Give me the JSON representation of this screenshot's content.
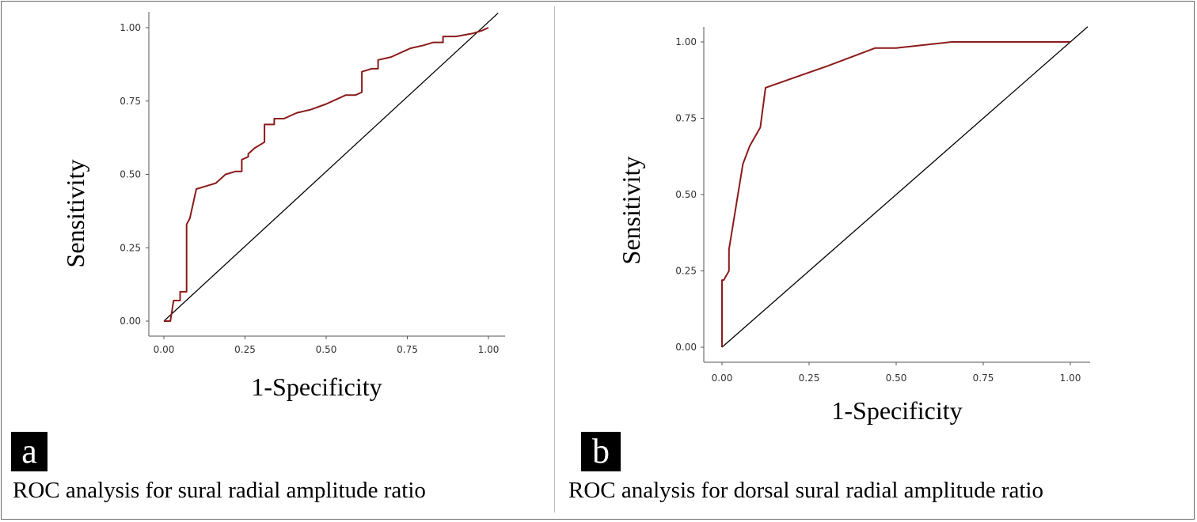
{
  "panels": [
    {
      "letter": "a",
      "caption": "ROC analysis for sural radial amplitude ratio"
    },
    {
      "letter": "b",
      "caption": "ROC analysis for dorsal sural radial amplitude ratio"
    }
  ],
  "colors": {
    "roc_curve": "#8b1a1a",
    "reference_line": "#000000",
    "axis": "#555555"
  },
  "chart_data": [
    {
      "type": "line",
      "xlabel": "1-Specificity",
      "ylabel": "Sensitivity",
      "xlim": [
        0,
        1
      ],
      "ylim": [
        0,
        1
      ],
      "xticks": [
        "0.00",
        "0.25",
        "0.50",
        "0.75",
        "1.00"
      ],
      "yticks": [
        "0.00",
        "0.25",
        "0.50",
        "0.75",
        "1.00"
      ],
      "grid": false,
      "series": [
        {
          "x": [
            0,
            0.02,
            0.03,
            0.03,
            0.05,
            0.05,
            0.07,
            0.07,
            0.08,
            0.08,
            0.1,
            0.1,
            0.13,
            0.16,
            0.19,
            0.22,
            0.24,
            0.24,
            0.26,
            0.26,
            0.28,
            0.31,
            0.31,
            0.34,
            0.34,
            0.37,
            0.41,
            0.45,
            0.5,
            0.56,
            0.59,
            0.61,
            0.61,
            0.64,
            0.66,
            0.66,
            0.7,
            0.76,
            0.8,
            0.83,
            0.86,
            0.86,
            0.9,
            0.95,
            0.98,
            1.0
          ],
          "y": [
            0,
            0,
            0.07,
            0.07,
            0.07,
            0.1,
            0.1,
            0.33,
            0.35,
            0.35,
            0.45,
            0.45,
            0.46,
            0.47,
            0.5,
            0.51,
            0.51,
            0.55,
            0.56,
            0.57,
            0.59,
            0.61,
            0.67,
            0.67,
            0.69,
            0.69,
            0.71,
            0.72,
            0.74,
            0.77,
            0.77,
            0.78,
            0.85,
            0.86,
            0.86,
            0.89,
            0.9,
            0.93,
            0.94,
            0.95,
            0.95,
            0.97,
            0.97,
            0.98,
            0.99,
            1.0
          ]
        },
        {
          "x": [
            0,
            1.03
          ],
          "y": [
            0,
            1.05
          ]
        }
      ]
    },
    {
      "type": "line",
      "xlabel": "1-Specificity",
      "ylabel": "Sensitivity",
      "xlim": [
        0,
        1
      ],
      "ylim": [
        0,
        1
      ],
      "xticks": [
        "0.00",
        "0.25",
        "0.50",
        "0.75",
        "1.00"
      ],
      "yticks": [
        "0.00",
        "0.25",
        "0.50",
        "0.75",
        "1.00"
      ],
      "grid": false,
      "series": [
        {
          "x": [
            0,
            0,
            0.005,
            0.02,
            0.02,
            0.04,
            0.06,
            0.08,
            0.11,
            0.125,
            0.3,
            0.44,
            0.5,
            0.66,
            1.0
          ],
          "y": [
            0,
            0.22,
            0.22,
            0.25,
            0.32,
            0.46,
            0.6,
            0.66,
            0.72,
            0.85,
            0.92,
            0.98,
            0.98,
            1.0,
            1.0
          ]
        },
        {
          "x": [
            0,
            1.05
          ],
          "y": [
            0,
            1.05
          ]
        }
      ]
    }
  ]
}
